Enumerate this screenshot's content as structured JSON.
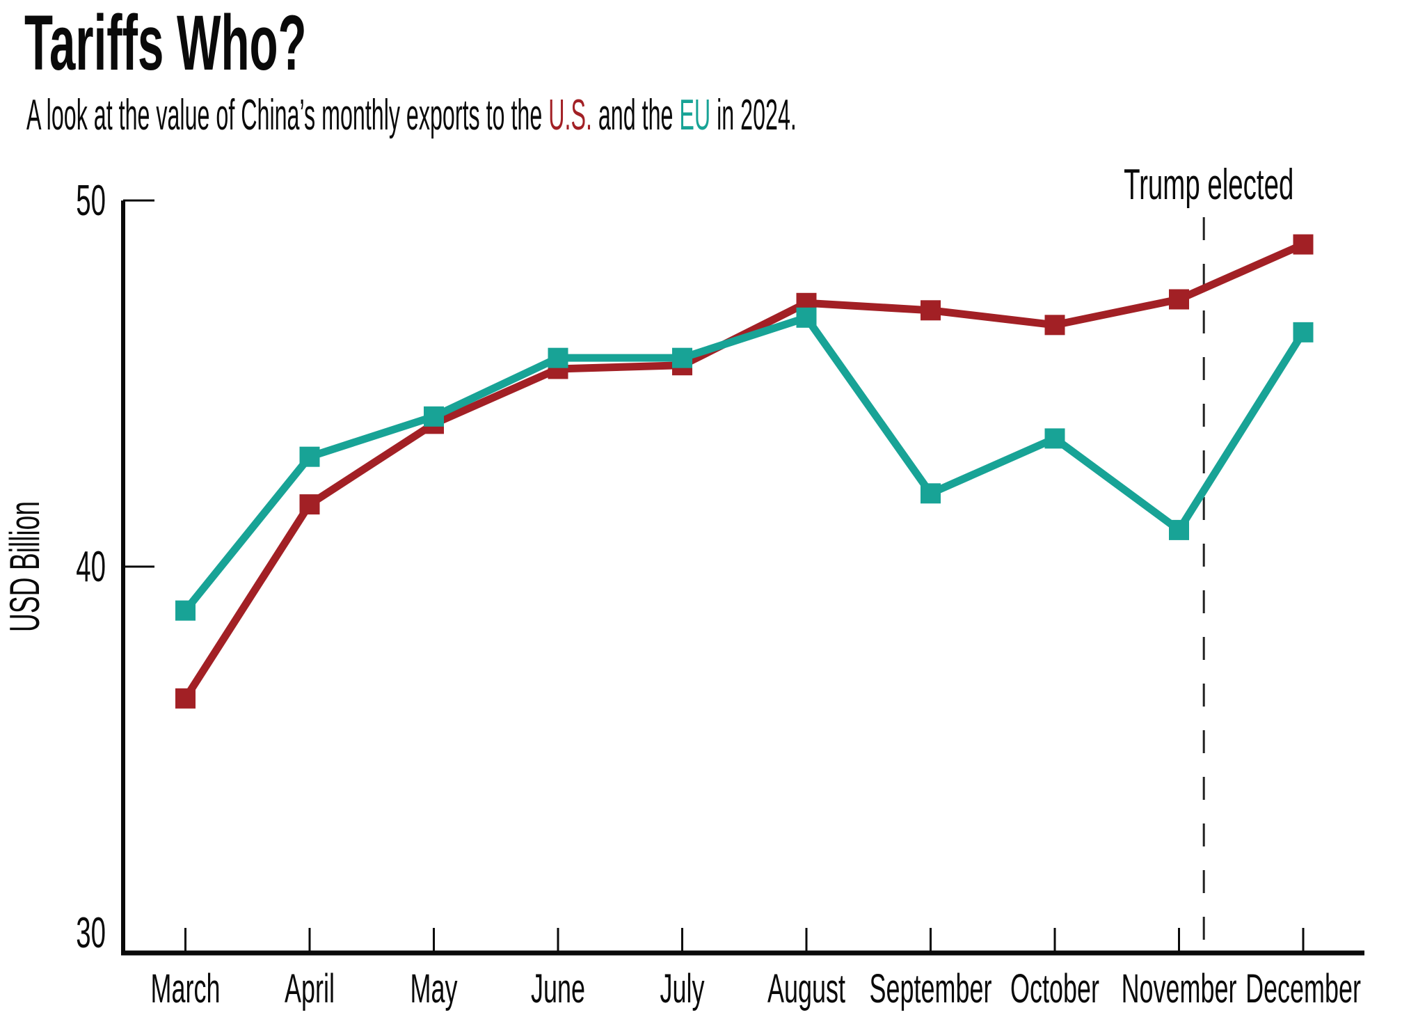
{
  "title": "Tariffs Who?",
  "subtitle": {
    "prefix": "A look at the value of China’s monthly exports to the ",
    "us_label": "U.S.",
    "mid": " and the ",
    "eu_label": "EU",
    "suffix": " in 2024."
  },
  "colors": {
    "us": "#A22025",
    "eu": "#18A396",
    "text": "#0a0a0a",
    "annotation_line": "#222222",
    "background": "#ffffff"
  },
  "chart_data": {
    "type": "line",
    "title": "Tariffs Who?",
    "subtitle": "A look at the value of China’s monthly exports to the U.S. and the EU in 2024.",
    "categories": [
      "March",
      "April",
      "May",
      "June",
      "July",
      "August",
      "September",
      "October",
      "November",
      "December"
    ],
    "series": [
      {
        "name": "U.S.",
        "color": "#A22025",
        "values": [
          36.4,
          41.7,
          43.9,
          45.4,
          45.5,
          47.2,
          47.0,
          46.6,
          47.3,
          48.8
        ]
      },
      {
        "name": "EU",
        "color": "#18A396",
        "values": [
          38.8,
          43.0,
          44.1,
          45.7,
          45.7,
          46.8,
          42.0,
          43.5,
          41.0,
          46.4
        ]
      }
    ],
    "xlabel": "",
    "ylabel": "USD Billion",
    "yticks": [
      30,
      40,
      50
    ],
    "ytick_marks": [
      40,
      50
    ],
    "ylim": [
      29.4,
      50
    ],
    "grid": false,
    "marker": "square",
    "legend_position": "inline-subtitle",
    "annotation": {
      "label": "Trump elected",
      "x_month_index": 8.2
    }
  }
}
